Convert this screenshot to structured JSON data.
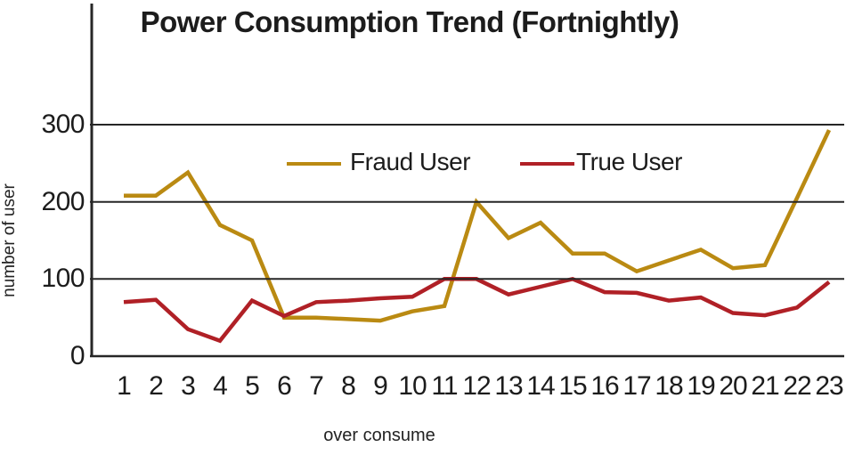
{
  "chart_data": {
    "type": "line",
    "title": "Power Consumption Trend (Fortnightly)",
    "xlabel": "over consume",
    "ylabel": "number of user",
    "x": [
      1,
      2,
      3,
      4,
      5,
      6,
      7,
      8,
      9,
      10,
      11,
      12,
      13,
      14,
      15,
      16,
      17,
      18,
      19,
      20,
      21,
      22,
      23
    ],
    "series": [
      {
        "name": "Fraud User",
        "color": "#BA8A12",
        "values": [
          208,
          208,
          238,
          170,
          150,
          50,
          50,
          48,
          46,
          58,
          65,
          200,
          153,
          173,
          133,
          133,
          110,
          124,
          138,
          114,
          118,
          205,
          293
        ]
      },
      {
        "name": "True User",
        "color": "#B02026",
        "values": [
          70,
          73,
          35,
          20,
          72,
          52,
          70,
          72,
          75,
          77,
          100,
          100,
          80,
          90,
          100,
          83,
          82,
          72,
          76,
          56,
          53,
          63,
          96
        ]
      }
    ],
    "yticks": [
      0,
      100,
      200,
      300
    ],
    "ylim": [
      0,
      450
    ],
    "grid": "horizontal",
    "legend_position": "inside-top",
    "axis_color": "#262626"
  }
}
